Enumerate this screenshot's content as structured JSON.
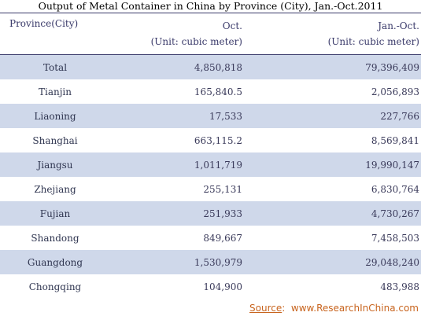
{
  "title": "Output of Metal Container in China by Province (City), Jan.-Oct.2011",
  "chart_data": {
    "type": "table",
    "title": "Output of Metal Container in China by Province (City), Jan.-Oct.2011",
    "columns": [
      {
        "label": "Province(City)",
        "unit": ""
      },
      {
        "label": "Oct.",
        "unit": "(Unit:  cubic meter)"
      },
      {
        "label": "Jan.-Oct.",
        "unit": "(Unit: cubic meter)"
      }
    ],
    "rows": [
      {
        "province": "Total",
        "oct": "4,850,818",
        "jan_oct": "79,396,409"
      },
      {
        "province": "Tianjin",
        "oct": "165,840.5",
        "jan_oct": "2,056,893"
      },
      {
        "province": "Liaoning",
        "oct": "17,533",
        "jan_oct": "227,766"
      },
      {
        "province": "Shanghai",
        "oct": "663,115.2",
        "jan_oct": "8,569,841"
      },
      {
        "province": "Jiangsu",
        "oct": "1,011,719",
        "jan_oct": "19,990,147"
      },
      {
        "province": "Zhejiang",
        "oct": "255,131",
        "jan_oct": "6,830,764"
      },
      {
        "province": "Fujian",
        "oct": "251,933",
        "jan_oct": "4,730,267"
      },
      {
        "province": "Shandong",
        "oct": "849,667",
        "jan_oct": "7,458,503"
      },
      {
        "province": "Guangdong",
        "oct": "1,530,979",
        "jan_oct": "29,048,240"
      },
      {
        "province": "Chongqing",
        "oct": "104,900",
        "jan_oct": "483,988"
      }
    ]
  },
  "source": {
    "label": "Source",
    "separator": ":",
    "site": "www.ResearchInChina.com"
  },
  "colors": {
    "header_text": "#3a3a6a",
    "row_shade": "#cfd8ea",
    "source_text": "#c8641e"
  }
}
